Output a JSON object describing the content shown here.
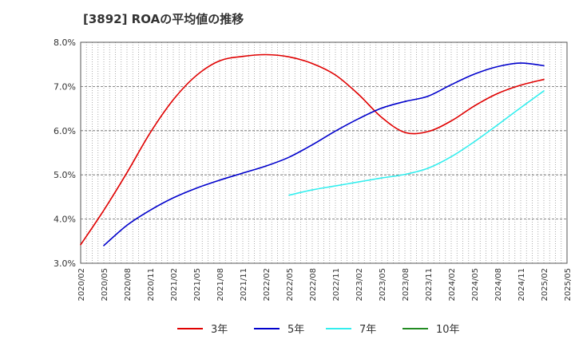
{
  "chart_data": {
    "type": "line",
    "title": "[3892]  ROAの平均値の推移",
    "xlabel": "",
    "ylabel": "",
    "ylim": [
      3.0,
      8.0
    ],
    "y_ticks": [
      "3.0%",
      "4.0%",
      "5.0%",
      "6.0%",
      "7.0%",
      "8.0%"
    ],
    "x_ticks": [
      "2020/02",
      "2020/05",
      "2020/08",
      "2020/11",
      "2021/02",
      "2021/05",
      "2021/08",
      "2021/11",
      "2022/02",
      "2022/05",
      "2022/08",
      "2022/11",
      "2023/02",
      "2023/05",
      "2023/08",
      "2023/11",
      "2024/02",
      "2024/05",
      "2024/08",
      "2024/11",
      "2025/02",
      "2025/05"
    ],
    "grid": true,
    "legend_position": "bottom",
    "series": [
      {
        "name": "3年",
        "color": "#e00000",
        "x": [
          "2020/02",
          "2020/05",
          "2020/08",
          "2020/11",
          "2021/02",
          "2021/05",
          "2021/08",
          "2021/11",
          "2022/02",
          "2022/05",
          "2022/08",
          "2022/11",
          "2023/02",
          "2023/05",
          "2023/08",
          "2023/11",
          "2024/02",
          "2024/05",
          "2024/08",
          "2024/11",
          "2025/02"
        ],
        "values": [
          3.42,
          4.2,
          5.05,
          5.95,
          6.7,
          7.25,
          7.58,
          7.68,
          7.72,
          7.67,
          7.52,
          7.26,
          6.82,
          6.3,
          5.96,
          5.98,
          6.22,
          6.56,
          6.84,
          7.03,
          7.16
        ]
      },
      {
        "name": "5年",
        "color": "#0000cc",
        "x": [
          "2020/05",
          "2020/08",
          "2020/11",
          "2021/02",
          "2021/05",
          "2021/08",
          "2021/11",
          "2022/02",
          "2022/05",
          "2022/08",
          "2022/11",
          "2023/02",
          "2023/05",
          "2023/08",
          "2023/11",
          "2024/02",
          "2024/05",
          "2024/08",
          "2024/11",
          "2025/02"
        ],
        "values": [
          3.4,
          3.86,
          4.2,
          4.48,
          4.7,
          4.88,
          5.04,
          5.2,
          5.4,
          5.68,
          5.99,
          6.27,
          6.51,
          6.66,
          6.78,
          7.04,
          7.28,
          7.45,
          7.53,
          7.47
        ]
      },
      {
        "name": "7年",
        "color": "#33eeee",
        "x": [
          "2022/05",
          "2022/08",
          "2022/11",
          "2023/02",
          "2023/05",
          "2023/08",
          "2023/11",
          "2024/02",
          "2024/05",
          "2024/08",
          "2024/11",
          "2025/02"
        ],
        "values": [
          4.54,
          4.66,
          4.75,
          4.84,
          4.93,
          5.01,
          5.15,
          5.41,
          5.75,
          6.13,
          6.52,
          6.9
        ]
      },
      {
        "name": "10年",
        "color": "#228b22",
        "x": [],
        "values": []
      }
    ]
  }
}
